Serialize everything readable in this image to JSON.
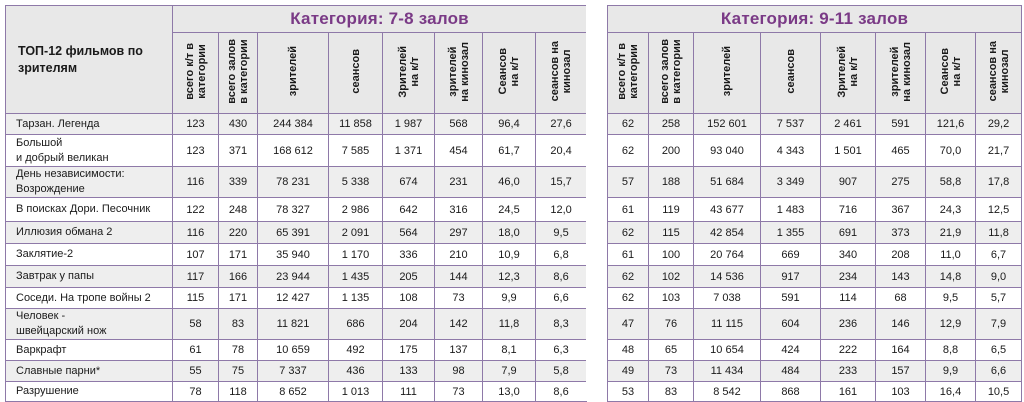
{
  "corner_header": "ТОП-12 фильмов по\nзрителям",
  "categories": [
    {
      "title": "Категория: 7-8 залов",
      "columns": [
        "всего к/т в\nкатегории",
        "всего залов\nв категории",
        "зрителей",
        "сеансов",
        "Зрителей\nна к/т",
        "зрителей\nна кинозал",
        "Сеансов\nна к/т",
        "сеансов на\nкинозал"
      ]
    },
    {
      "title": "Категория: 9-11 залов",
      "columns": [
        "всего к/т в\nкатегории",
        "всего залов\nв категории",
        "зрителей",
        "сеансов",
        "Зрителей\nна к/т",
        "зрителей\nна кинозал",
        "Сеансов\nна к/т",
        "сеансов на\nкинозал"
      ]
    }
  ],
  "rows": [
    {
      "film": "Тарзан. Легенда",
      "cat1": [
        "123",
        "430",
        "244 384",
        "11 858",
        "1 987",
        "568",
        "96,4",
        "27,6"
      ],
      "cat2": [
        "62",
        "258",
        "152 601",
        "7 537",
        "2 461",
        "591",
        "121,6",
        "29,2"
      ]
    },
    {
      "film": "Большой\nи добрый великан",
      "cat1": [
        "123",
        "371",
        "168 612",
        "7 585",
        "1 371",
        "454",
        "61,7",
        "20,4"
      ],
      "cat2": [
        "62",
        "200",
        "93 040",
        "4 343",
        "1 501",
        "465",
        "70,0",
        "21,7"
      ]
    },
    {
      "film": "День независимости:\nВозрождение",
      "cat1": [
        "116",
        "339",
        "78 231",
        "5 338",
        "674",
        "231",
        "46,0",
        "15,7"
      ],
      "cat2": [
        "57",
        "188",
        "51 684",
        "3 349",
        "907",
        "275",
        "58,8",
        "17,8"
      ]
    },
    {
      "film": "В поисках Дори.    Песочник",
      "cat1": [
        "122",
        "248",
        "78 327",
        "2 986",
        "642",
        "316",
        "24,5",
        "12,0"
      ],
      "cat2": [
        "61",
        "119",
        "43 677",
        "1 483",
        "716",
        "367",
        "24,3",
        "12,5"
      ]
    },
    {
      "film": "Иллюзия обмана 2",
      "cat1": [
        "116",
        "220",
        "65 391",
        "2 091",
        "564",
        "297",
        "18,0",
        "9,5"
      ],
      "cat2": [
        "62",
        "115",
        "42 854",
        "1 355",
        "691",
        "373",
        "21,9",
        "11,8"
      ]
    },
    {
      "film": "Заклятие-2",
      "cat1": [
        "107",
        "171",
        "35 940",
        "1 170",
        "336",
        "210",
        "10,9",
        "6,8"
      ],
      "cat2": [
        "61",
        "100",
        "20 764",
        "669",
        "340",
        "208",
        "11,0",
        "6,7"
      ]
    },
    {
      "film": "Завтрак у папы",
      "cat1": [
        "117",
        "166",
        "23 944",
        "1 435",
        "205",
        "144",
        "12,3",
        "8,6"
      ],
      "cat2": [
        "62",
        "102",
        "14 536",
        "917",
        "234",
        "143",
        "14,8",
        "9,0"
      ]
    },
    {
      "film": "Соседи. На тропе войны 2",
      "cat1": [
        "115",
        "171",
        "12 427",
        "1 135",
        "108",
        "73",
        "9,9",
        "6,6"
      ],
      "cat2": [
        "62",
        "103",
        "7 038",
        "591",
        "114",
        "68",
        "9,5",
        "5,7"
      ]
    },
    {
      "film": "Человек -\nшвейцарский нож",
      "cat1": [
        "58",
        "83",
        "11 821",
        "686",
        "204",
        "142",
        "11,8",
        "8,3"
      ],
      "cat2": [
        "47",
        "76",
        "11 115",
        "604",
        "236",
        "146",
        "12,9",
        "7,9"
      ]
    },
    {
      "film": "Варкрафт",
      "cat1": [
        "61",
        "78",
        "10 659",
        "492",
        "175",
        "137",
        "8,1",
        "6,3"
      ],
      "cat2": [
        "48",
        "65",
        "10 654",
        "424",
        "222",
        "164",
        "8,8",
        "6,5"
      ]
    },
    {
      "film": "Славные парни*",
      "cat1": [
        "55",
        "75",
        "7 337",
        "436",
        "133",
        "98",
        "7,9",
        "5,8"
      ],
      "cat2": [
        "49",
        "73",
        "11 434",
        "484",
        "233",
        "157",
        "9,9",
        "6,6"
      ]
    },
    {
      "film": "Разрушение",
      "cat1": [
        "78",
        "118",
        "8 652",
        "1 013",
        "111",
        "73",
        "13,0",
        "8,6"
      ],
      "cat2": [
        "53",
        "83",
        "8 542",
        "868",
        "161",
        "103",
        "16,4",
        "10,5"
      ]
    }
  ],
  "colors": {
    "title": "#7a3a86",
    "border": "#8e79a8",
    "header_bg": "#e8e8e8",
    "stripe_bg": "#eeeeee"
  }
}
